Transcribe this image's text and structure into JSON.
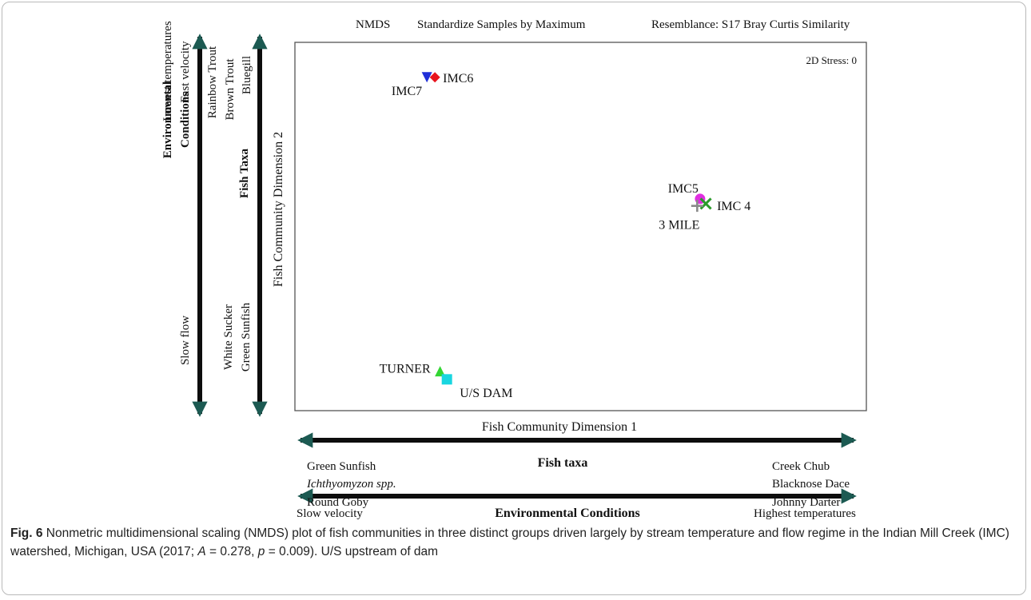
{
  "chart_data": {
    "type": "scatter",
    "header": {
      "method": "NMDS",
      "transform": "Standardize Samples by Maximum",
      "resemblance": "Resemblance: S17 Bray Curtis Similarity"
    },
    "stress": "2D Stress: 0",
    "xlabel": "Fish Community Dimension 1",
    "ylabel": "Fish Community Dimension 2",
    "grid": false,
    "points": [
      {
        "label": "IMC7",
        "x": 0.231,
        "y": 0.905,
        "marker": "triangle-down",
        "color": "#1f2fd8"
      },
      {
        "label": "IMC6",
        "x": 0.245,
        "y": 0.905,
        "marker": "diamond",
        "color": "#e8141e"
      },
      {
        "label": "IMC5",
        "x": 0.709,
        "y": 0.575,
        "marker": "circle",
        "color": "#e02ee0"
      },
      {
        "label": "IMC 4",
        "x": 0.719,
        "y": 0.562,
        "marker": "x",
        "color": "#2a9a2a"
      },
      {
        "label": "3 MILE",
        "x": 0.704,
        "y": 0.556,
        "marker": "plus",
        "color": "#8a8a8a"
      },
      {
        "label": "TURNER",
        "x": 0.254,
        "y": 0.107,
        "marker": "triangle-up",
        "color": "#33d633"
      },
      {
        "label": "U/S DAM",
        "x": 0.266,
        "y": 0.085,
        "marker": "square",
        "color": "#19d6e0"
      }
    ],
    "vertical_axes": [
      {
        "title": [
          "Environmental",
          "Conditions"
        ],
        "top_labels": [
          "Lowest temperatures",
          "Fast velocity"
        ],
        "bottom_labels": [
          "Slow flow"
        ]
      },
      {
        "title": [
          "Fish Taxa"
        ],
        "top_labels": [
          "Rainbow Trout",
          "Brown Trout",
          "Bluegill"
        ],
        "bottom_labels": [
          "White Sucker",
          "Green Sunfish"
        ]
      }
    ],
    "horizontal_axes": [
      {
        "title": "Fish taxa",
        "left_labels": [
          "Green Sunfish",
          "Ichthyomyzon spp.",
          "Round Goby"
        ],
        "right_labels": [
          "Creek Chub",
          "Blacknose Dace",
          "Johnny Darter"
        ]
      },
      {
        "title": "Environmental Conditions",
        "left_label": "Slow velocity",
        "right_label": "Highest temperatures"
      }
    ]
  },
  "caption": {
    "label": "Fig. 6",
    "text_1": " Nonmetric multidimensional scaling (NMDS) plot of fish communities in three distinct groups driven largely by stream temperature and flow regime in the Indian Mill Creek (IMC) watershed, Michigan, USA (2017; ",
    "stat_a": "A",
    "text_2": " = 0.278, ",
    "stat_p": "p",
    "text_3": " = 0.009). U/S upstream of dam"
  },
  "colors": {
    "arrow": "#0d0d0d",
    "arrow_head": "#1c5a52",
    "frame": "#555555"
  }
}
